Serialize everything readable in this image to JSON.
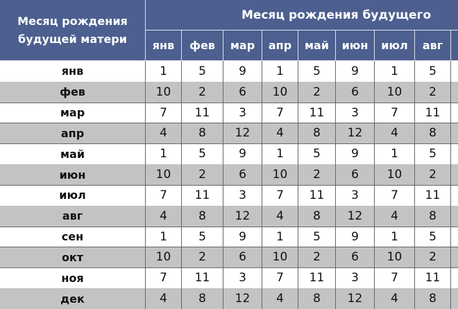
{
  "header": {
    "row_title": [
      "Месяц рождения",
      "будущей матери"
    ],
    "column_title": "Месяц рождения будущего"
  },
  "table": {
    "columns": [
      "янв",
      "фев",
      "мар",
      "апр",
      "май",
      "июн",
      "июл",
      "авг"
    ],
    "rows": [
      {
        "label": "янв",
        "values": [
          1,
          5,
          9,
          1,
          5,
          9,
          1,
          5
        ]
      },
      {
        "label": "фев",
        "values": [
          10,
          2,
          6,
          10,
          2,
          6,
          10,
          2
        ]
      },
      {
        "label": "мар",
        "values": [
          7,
          11,
          3,
          7,
          11,
          3,
          7,
          11
        ]
      },
      {
        "label": "апр",
        "values": [
          4,
          8,
          12,
          4,
          8,
          12,
          4,
          8
        ]
      },
      {
        "label": "май",
        "values": [
          1,
          5,
          9,
          1,
          5,
          9,
          1,
          5
        ]
      },
      {
        "label": "июн",
        "values": [
          10,
          2,
          6,
          10,
          2,
          6,
          10,
          2
        ]
      },
      {
        "label": "июл",
        "values": [
          7,
          11,
          3,
          7,
          11,
          3,
          7,
          11
        ]
      },
      {
        "label": "авг",
        "values": [
          4,
          8,
          12,
          4,
          8,
          12,
          4,
          8
        ]
      },
      {
        "label": "сен",
        "values": [
          1,
          5,
          9,
          1,
          5,
          9,
          1,
          5
        ]
      },
      {
        "label": "окт",
        "values": [
          10,
          2,
          6,
          10,
          2,
          6,
          10,
          2
        ]
      },
      {
        "label": "ноя",
        "values": [
          7,
          11,
          3,
          7,
          11,
          3,
          7,
          11
        ]
      },
      {
        "label": "дек",
        "values": [
          4,
          8,
          12,
          4,
          8,
          12,
          4,
          8
        ]
      }
    ]
  }
}
